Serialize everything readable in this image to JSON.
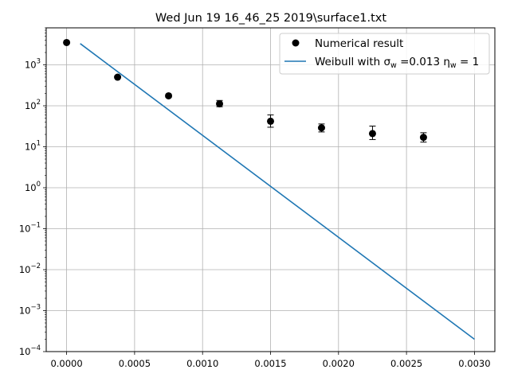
{
  "chart_data": {
    "type": "scatter",
    "title": "Wed Jun 19 16_46_25 2019\\surface1.txt",
    "xlabel": "",
    "ylabel": "",
    "xlim": [
      -0.00015,
      0.00315
    ],
    "ylim": [
      0.0001,
      8000
    ],
    "yscale": "log",
    "grid": true,
    "legend_position": "top-right",
    "x_ticks": [
      {
        "value": 0.0,
        "label": "0.0000"
      },
      {
        "value": 0.0005,
        "label": "0.0005"
      },
      {
        "value": 0.001,
        "label": "0.0010"
      },
      {
        "value": 0.0015,
        "label": "0.0015"
      },
      {
        "value": 0.002,
        "label": "0.0020"
      },
      {
        "value": 0.0025,
        "label": "0.0025"
      },
      {
        "value": 0.003,
        "label": "0.0030"
      }
    ],
    "y_ticks": [
      {
        "exp": 3,
        "label": "10",
        "sup": "3"
      },
      {
        "exp": 2,
        "label": "10",
        "sup": "2"
      },
      {
        "exp": 1,
        "label": "10",
        "sup": "1"
      },
      {
        "exp": 0,
        "label": "10",
        "sup": "0"
      },
      {
        "exp": -1,
        "label": "10",
        "sup": "−1"
      },
      {
        "exp": -2,
        "label": "10",
        "sup": "−2"
      },
      {
        "exp": -3,
        "label": "10",
        "sup": "−3"
      },
      {
        "exp": -4,
        "label": "10",
        "sup": "−4"
      }
    ],
    "series": [
      {
        "name": "Numerical result",
        "kind": "points-with-errorbars",
        "color": "#000000",
        "x": [
          0.0,
          0.000375,
          0.00075,
          0.001125,
          0.0015,
          0.001875,
          0.00225,
          0.002625
        ],
        "y": [
          3500,
          500,
          175,
          112,
          42,
          29,
          21,
          17
        ],
        "y_lower": [
          3300,
          470,
          160,
          95,
          30,
          23,
          15,
          13
        ],
        "y_upper": [
          3700,
          540,
          190,
          135,
          60,
          36,
          32,
          22
        ]
      },
      {
        "name": "Weibull with σ_w =0.013 η_w = 1",
        "kind": "line",
        "color": "#1f77b4",
        "x": [
          0.0001,
          0.003
        ],
        "y": [
          3300,
          0.0002
        ]
      }
    ],
    "legend": {
      "entry1": "Numerical result",
      "entry2_pre": "Weibull with σ",
      "entry2_sub1": "w",
      "entry2_mid": " =0.013 η",
      "entry2_sub2": "w",
      "entry2_post": " = 1"
    }
  }
}
